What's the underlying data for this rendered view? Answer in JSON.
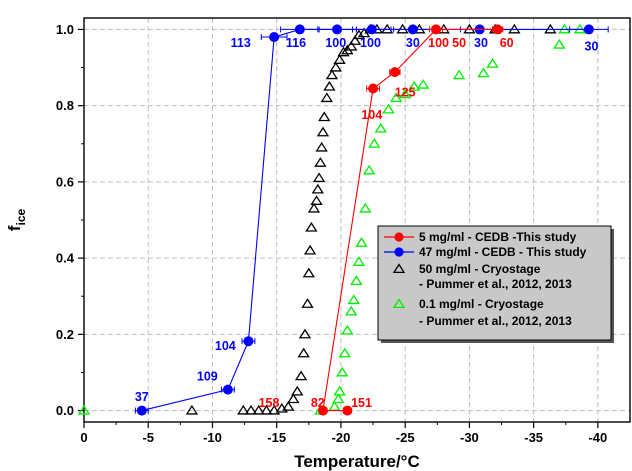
{
  "chart_data": {
    "type": "scatter",
    "title": "",
    "xlabel": "Temperature/°C",
    "ylabel_main": "f",
    "ylabel_sub": "ice",
    "xlim": [
      0,
      -42.5
    ],
    "ylim": [
      -0.03,
      1.03
    ],
    "xticks": [
      0,
      -5,
      -10,
      -15,
      -20,
      -25,
      -30,
      -35,
      -40
    ],
    "xtick_labels": [
      "0",
      "-5",
      "-10",
      "-15",
      "-20",
      "-25",
      "-30",
      "-35",
      "-40"
    ],
    "yticks": [
      0.0,
      0.2,
      0.4,
      0.6,
      0.8,
      1.0
    ],
    "ytick_labels": [
      "0.0",
      "0.2",
      "0.4",
      "0.6",
      "0.8",
      "1.0"
    ],
    "grid": true,
    "legend_position": "lower-right",
    "series": [
      {
        "name": "5 mg/ml - CEDB -This study",
        "color": "#ff0000",
        "marker": "filled-circle",
        "line": true,
        "x": [
          -20.5,
          -18.6,
          -22.5,
          -24.2,
          -27.4,
          -32.2
        ],
        "y": [
          0.0,
          0.0,
          0.845,
          0.888,
          1.0,
          1.0
        ],
        "xerr": [
          0.3,
          0.3,
          0.5,
          0.4,
          0.5,
          0.4
        ]
      },
      {
        "name": "47 mg/ml - CEDB - This study",
        "color": "#0000ff",
        "marker": "filled-circle",
        "line": true,
        "x": [
          -4.5,
          -11.2,
          -12.8,
          -14.8,
          -16.8,
          -19.7,
          -22.4,
          -25.6,
          -30.8,
          -39.3
        ],
        "y": [
          0.0,
          0.055,
          0.182,
          0.98,
          1.0,
          1.0,
          1.0,
          1.0,
          1.0,
          1.0
        ],
        "xerr": [
          0.5,
          0.5,
          0.5,
          1.0,
          1.5,
          1.5,
          1.5,
          1.5,
          1.5,
          1.5
        ]
      },
      {
        "name": "50 mg/ml - Cryostage",
        "name_line2": " - Pummer et al., 2012, 2013",
        "color": "#000000",
        "marker": "open-triangle",
        "line": false,
        "x": [
          -8.4,
          -12.4,
          -13.0,
          -13.6,
          -14.2,
          -14.8,
          -15.4,
          -15.9,
          -16.3,
          -16.6,
          -16.9,
          -17.1,
          -17.2,
          -17.4,
          -17.5,
          -17.6,
          -17.7,
          -17.9,
          -18.1,
          -18.2,
          -18.3,
          -18.4,
          -18.5,
          -18.6,
          -18.7,
          -18.9,
          -19.1,
          -19.3,
          -19.6,
          -19.9,
          -20.2,
          -20.5,
          -20.8,
          -21.1,
          -21.4,
          -21.8,
          -22.3,
          -22.8,
          -23.6,
          -24.8,
          -26.1,
          -28.0,
          -30.0,
          -32.0,
          -33.5,
          -36.3
        ],
        "y": [
          0.0,
          0.0,
          0.0,
          0.0,
          0.0,
          0.0,
          0.005,
          0.01,
          0.03,
          0.05,
          0.09,
          0.15,
          0.2,
          0.28,
          0.36,
          0.42,
          0.48,
          0.53,
          0.55,
          0.58,
          0.61,
          0.65,
          0.69,
          0.73,
          0.77,
          0.82,
          0.85,
          0.88,
          0.9,
          0.92,
          0.94,
          0.945,
          0.955,
          0.97,
          0.985,
          0.99,
          1.0,
          1.0,
          1.0,
          1.0,
          1.0,
          1.0,
          1.0,
          1.0,
          1.0,
          1.0
        ]
      },
      {
        "name": "0.1 mg/ml - Cryostage",
        "name_line2": " - Pummer et al., 2012, 2013",
        "color": "#00ee00",
        "marker": "open-triangle",
        "line": false,
        "x": [
          0.0,
          -18.4,
          -19.5,
          -19.8,
          -19.9,
          -20.1,
          -20.3,
          -20.5,
          -20.8,
          -21.0,
          -21.2,
          -21.4,
          -21.6,
          -21.9,
          -22.2,
          -22.6,
          -23.1,
          -23.7,
          -24.3,
          -25.0,
          -25.7,
          -26.4,
          -29.2,
          -31.1,
          -31.8,
          -37.0,
          -37.4,
          -38.6
        ],
        "y": [
          0.0,
          0.0,
          0.01,
          0.03,
          0.05,
          0.1,
          0.15,
          0.21,
          0.26,
          0.29,
          0.34,
          0.39,
          0.44,
          0.53,
          0.63,
          0.7,
          0.74,
          0.79,
          0.82,
          0.83,
          0.85,
          0.855,
          0.88,
          0.885,
          0.91,
          0.96,
          1.0,
          1.0
        ]
      }
    ],
    "annotations": [
      {
        "text": "37",
        "color": "#0000ff",
        "x": -4.5,
        "y": 0.035
      },
      {
        "text": "109",
        "color": "#0000ff",
        "x": -9.6,
        "y": 0.09
      },
      {
        "text": "104",
        "color": "#0000ff",
        "x": -11.0,
        "y": 0.17
      },
      {
        "text": "113",
        "color": "#0000ff",
        "x": -12.2,
        "y": 0.965
      },
      {
        "text": "116",
        "color": "#0000ff",
        "x": -16.5,
        "y": 0.965
      },
      {
        "text": "100",
        "color": "#0000ff",
        "x": -19.6,
        "y": 0.965
      },
      {
        "text": "100",
        "color": "#0000ff",
        "x": -22.3,
        "y": 0.965
      },
      {
        "text": "30",
        "color": "#0000ff",
        "x": -25.6,
        "y": 0.965
      },
      {
        "text": "30",
        "color": "#0000ff",
        "x": -30.9,
        "y": 0.965
      },
      {
        "text": "30",
        "color": "#0000ff",
        "x": -39.5,
        "y": 0.955
      },
      {
        "text": "100",
        "color": "#ff0000",
        "x": -27.6,
        "y": 0.965
      },
      {
        "text": "50",
        "color": "#ff0000",
        "x": -29.2,
        "y": 0.965
      },
      {
        "text": "60",
        "color": "#ff0000",
        "x": -32.9,
        "y": 0.965
      },
      {
        "text": "125",
        "color": "#ff0000",
        "x": -25.0,
        "y": 0.835
      },
      {
        "text": "104",
        "color": "#ff0000",
        "x": -22.4,
        "y": 0.775
      },
      {
        "text": "158",
        "color": "#ff0000",
        "x": -14.4,
        "y": 0.02
      },
      {
        "text": "82",
        "color": "#ff0000",
        "x": -18.2,
        "y": 0.02
      },
      {
        "text": "151",
        "color": "#ff0000",
        "x": -21.6,
        "y": 0.02
      }
    ]
  }
}
